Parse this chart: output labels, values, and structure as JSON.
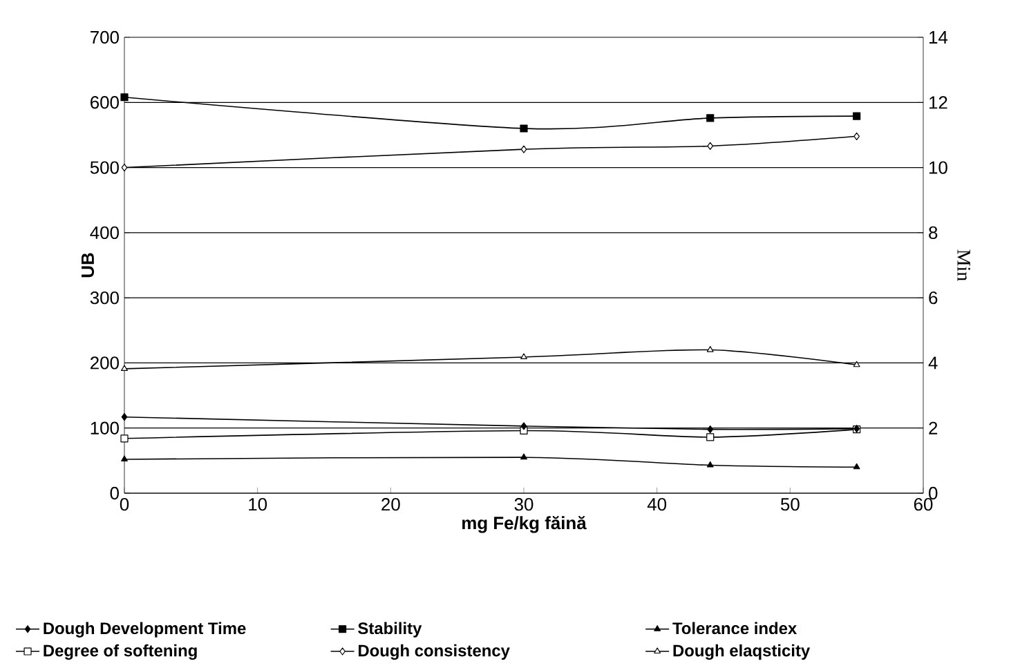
{
  "chart_data": {
    "type": "line",
    "xlabel": "mg Fe/kg făină",
    "ylabel": "UB",
    "y2label": "Min",
    "x": [
      0,
      30,
      44,
      55
    ],
    "xlim": [
      0,
      60
    ],
    "xticks": [
      0,
      10,
      20,
      30,
      40,
      50,
      60
    ],
    "ylim": [
      0,
      700
    ],
    "yticks": [
      0,
      100,
      200,
      300,
      400,
      500,
      600,
      700
    ],
    "y2lim": [
      0,
      14
    ],
    "y2ticks": [
      0,
      2,
      4,
      6,
      8,
      10,
      12,
      14
    ],
    "grid": "y",
    "legend": "bottom",
    "color": "#000000",
    "line_style": "solid",
    "series": [
      {
        "name": "Dough Development Time",
        "axis": "y2",
        "marker": "diamond",
        "values": [
          2.34,
          2.06,
          1.96,
          1.98
        ]
      },
      {
        "name": "Stability",
        "axis": "y2",
        "marker": "square",
        "values": [
          12.16,
          11.2,
          11.52,
          11.58
        ]
      },
      {
        "name": "Tolerance index",
        "axis": "y",
        "marker": "triangle",
        "values": [
          52,
          55,
          43,
          40
        ]
      },
      {
        "name": "Degree of softening",
        "axis": "y",
        "marker": "square",
        "values": [
          84,
          96,
          86,
          98
        ]
      },
      {
        "name": "Dough consistency",
        "axis": "y",
        "marker": "diamond",
        "values": [
          500,
          528,
          533,
          548
        ]
      },
      {
        "name": "Dough elaqsticity",
        "axis": "y",
        "marker": "triangle",
        "values": [
          191,
          209,
          220,
          197
        ]
      }
    ]
  }
}
